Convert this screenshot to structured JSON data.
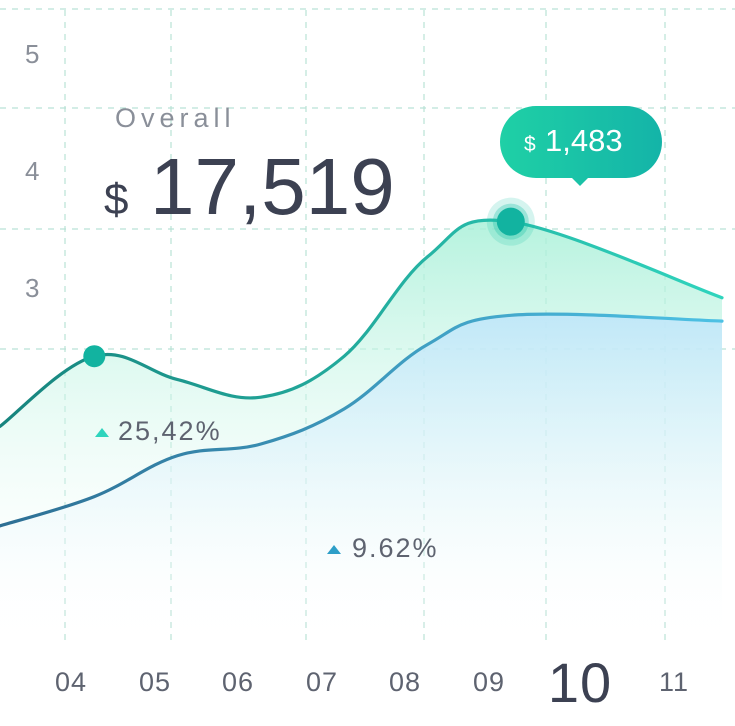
{
  "chart_data": {
    "type": "area",
    "title": "",
    "xlabel": "",
    "ylabel": "",
    "x": [
      "04",
      "05",
      "06",
      "07",
      "08",
      "09",
      "10",
      "11"
    ],
    "active_x": "10",
    "yticks": [
      "5",
      "4",
      "3"
    ],
    "ylim": [
      0.6,
      5.4
    ],
    "grid": true,
    "series": [
      {
        "id": "s1",
        "values": [
          1.8,
          2.4,
          2.2,
          2.05,
          2.4,
          3.25,
          3.55,
          2.9
        ],
        "change": "25,42%",
        "color_start": "#17847e",
        "color_end": "#2fd4bd",
        "fill": "#a8f0d8"
      },
      {
        "id": "s2",
        "values": [
          0.95,
          1.2,
          1.55,
          1.65,
          1.95,
          2.5,
          2.75,
          2.7
        ],
        "change": "9.62%",
        "color_start": "#2d6f94",
        "color_end": "#4dc1e4",
        "fill": "#bfe6fa"
      }
    ],
    "markers": [
      {
        "series": "s1",
        "x": "05",
        "value": 2.4
      },
      {
        "series": "s1",
        "x": "10",
        "value": 3.55,
        "highlight": true
      }
    ],
    "tooltip": {
      "x": "10",
      "currency": "$",
      "value": "1,483",
      "color": "#17c1a4"
    },
    "overall": {
      "label": "Overall",
      "currency": "$",
      "value": "17,519"
    },
    "grid_color": "#b9e2d6"
  }
}
